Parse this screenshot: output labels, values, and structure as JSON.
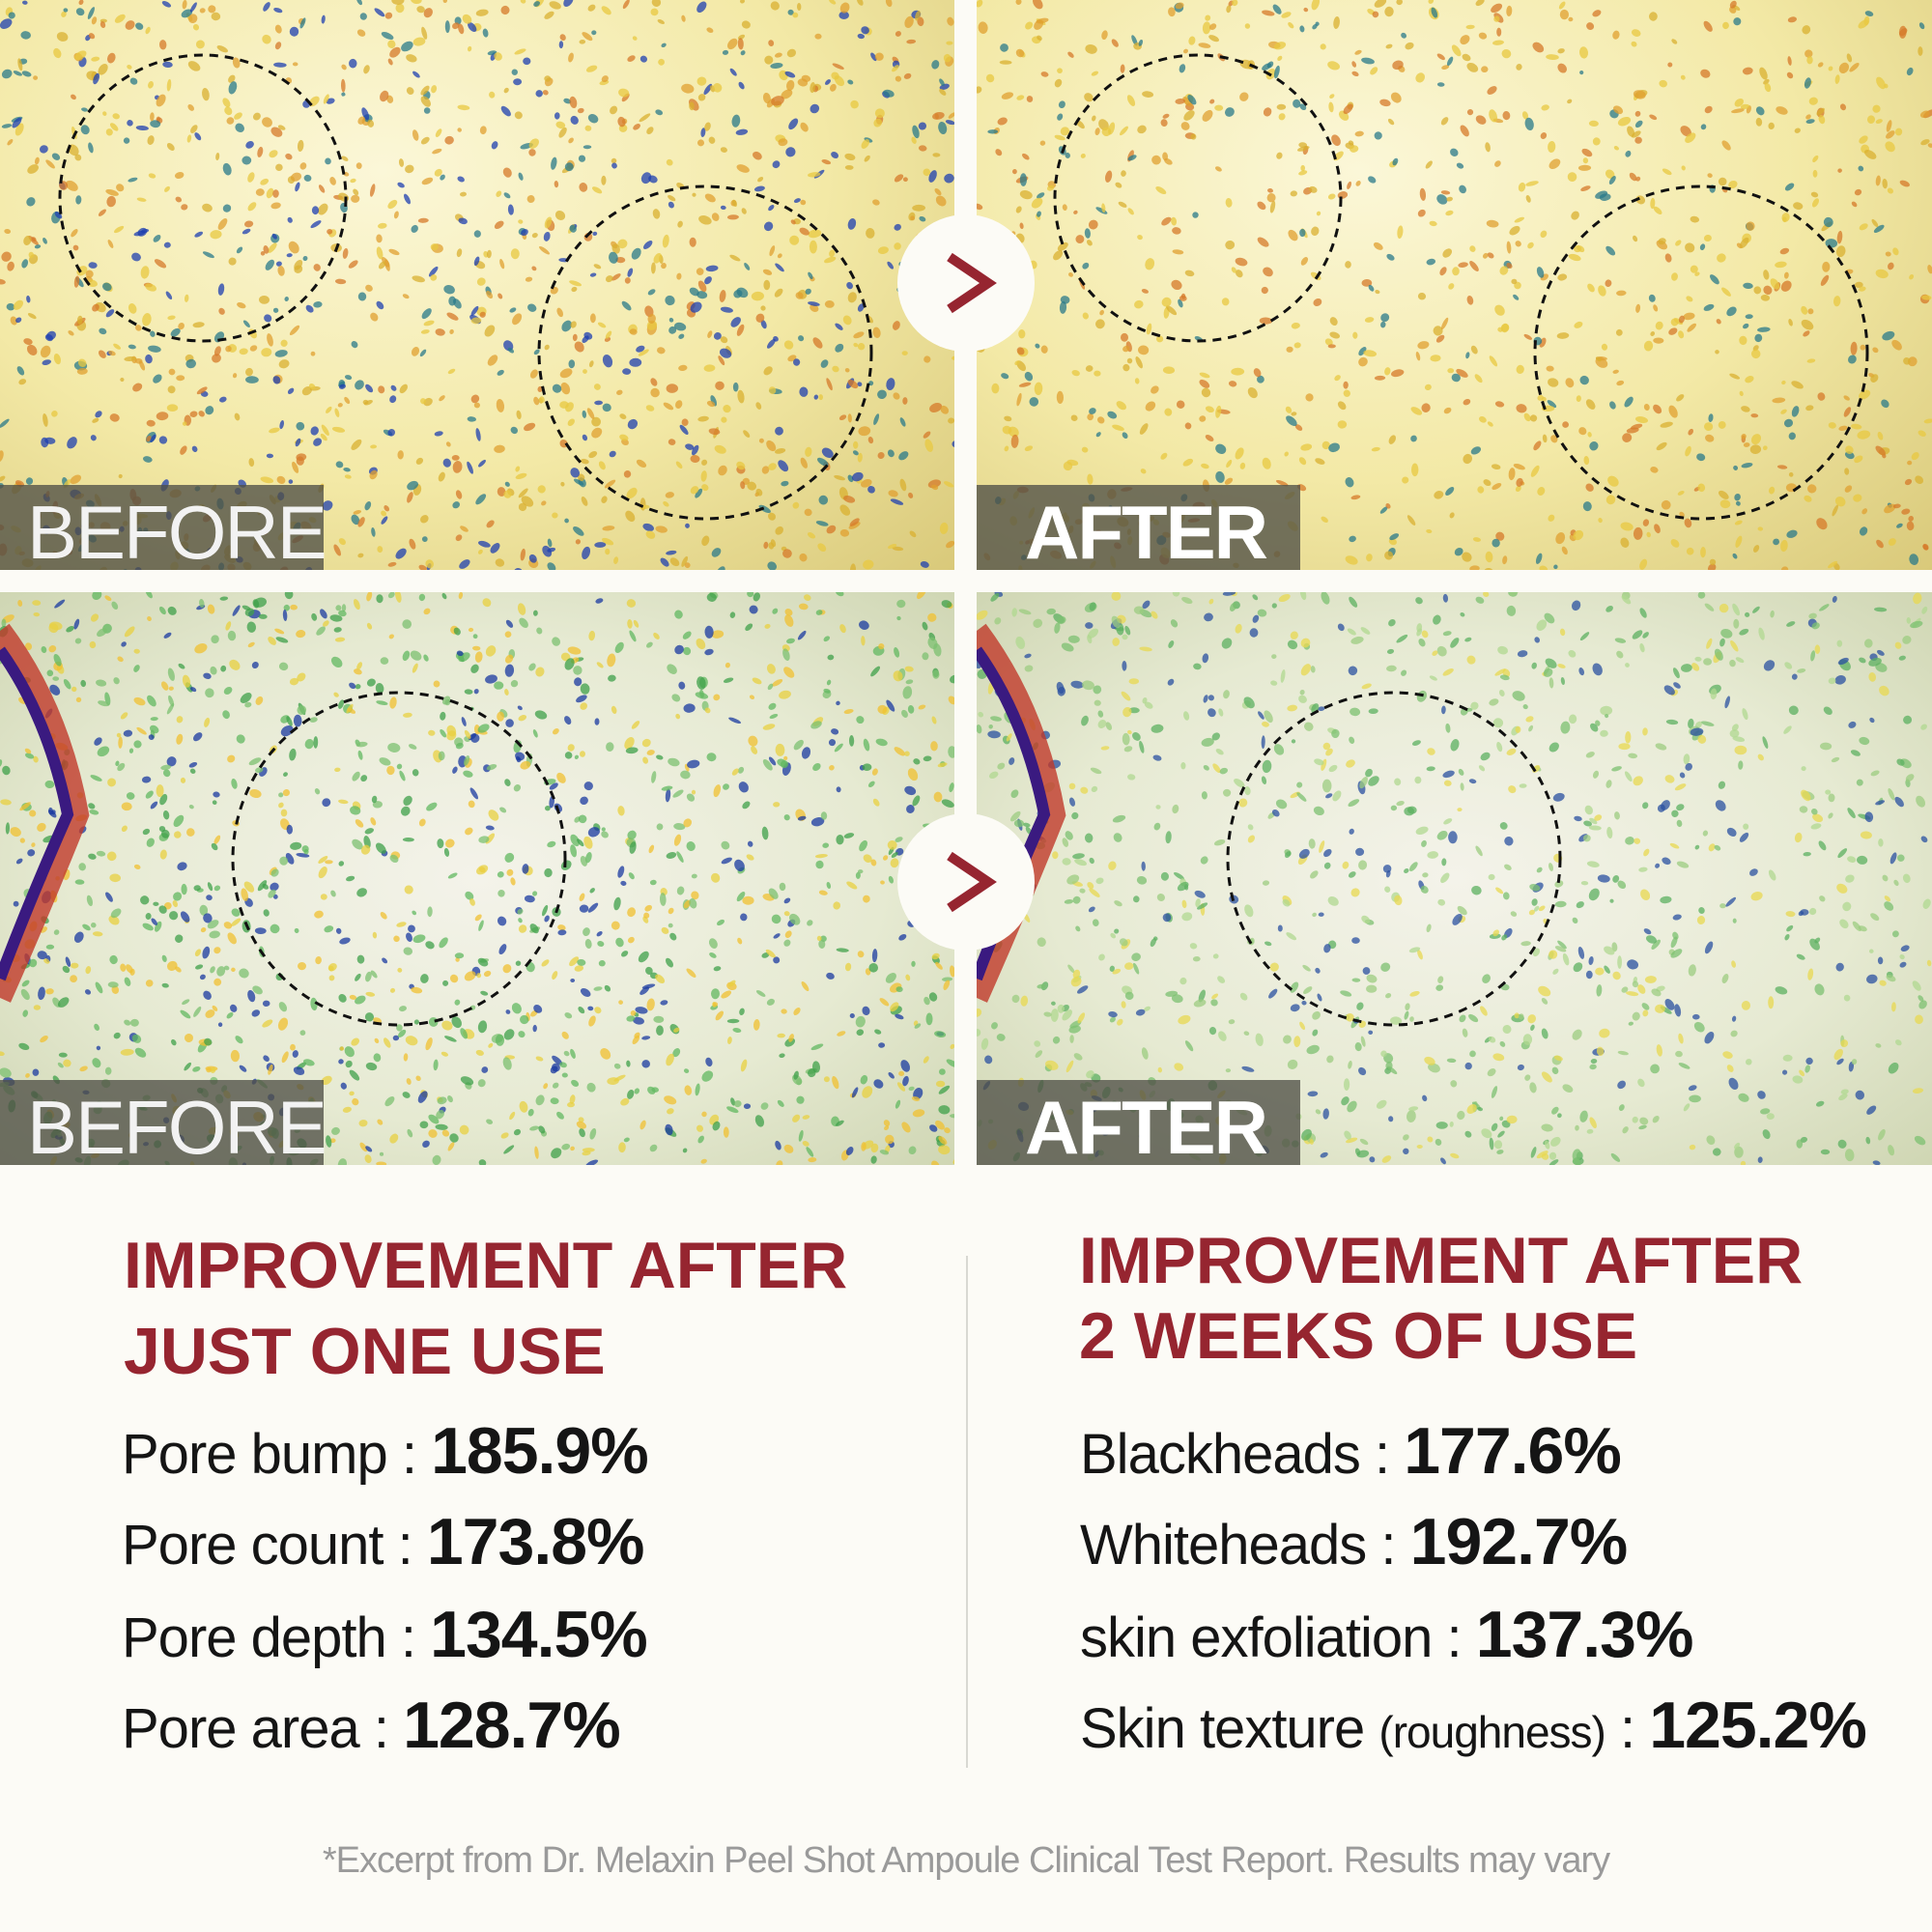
{
  "panels": {
    "before_label": "BEFORE",
    "after_label": "AFTER"
  },
  "arrow_icon": "chevron-right-icon",
  "colors": {
    "accent": "#962530",
    "text": "#151515",
    "footnote": "#9a9a9a",
    "background": "#fcfbf6"
  },
  "left": {
    "heading_line1": "IMPROVEMENT AFTER",
    "heading_line2": "JUST ONE USE",
    "stats": [
      {
        "label": "Pore bump",
        "value": "185.9%"
      },
      {
        "label": "Pore count",
        "value": "173.8%"
      },
      {
        "label": "Pore depth",
        "value": "134.5%"
      },
      {
        "label": "Pore area",
        "value": "128.7%"
      }
    ]
  },
  "right": {
    "heading_line1": "IMPROVEMENT AFTER",
    "heading_line2": "2 WEEKS OF USE",
    "stats": [
      {
        "label": "Blackheads",
        "value": "177.6%"
      },
      {
        "label": "Whiteheads",
        "value": "192.7%"
      },
      {
        "label": "skin exfoliation",
        "value": "137.3%"
      },
      {
        "label": "Skin texture",
        "note": "(roughness)",
        "value": "125.2%"
      }
    ]
  },
  "footer": "*Excerpt from Dr. Melaxin Peel Shot Ampoule Clinical Test Report. Results may vary"
}
